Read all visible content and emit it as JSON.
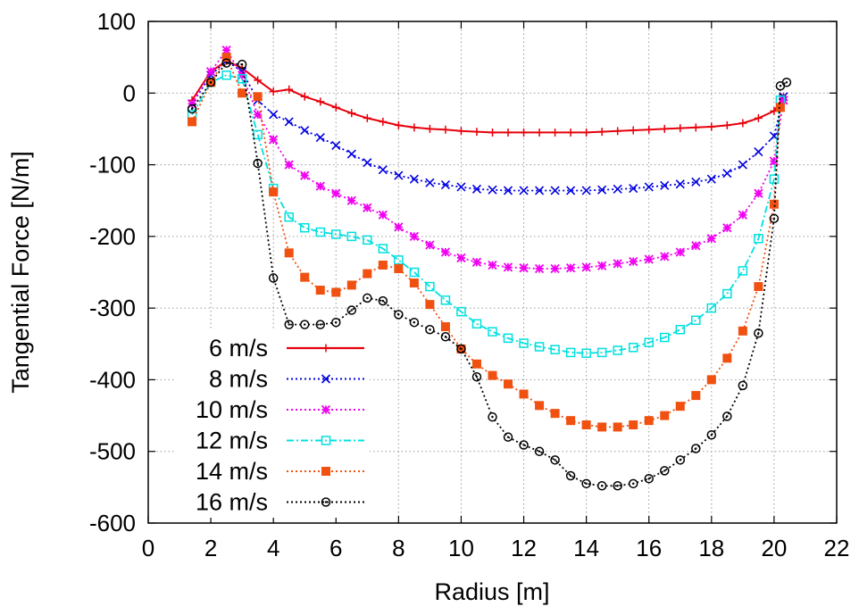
{
  "chart_data": {
    "type": "line",
    "title": "",
    "xlabel": "Radius [m]",
    "ylabel": "Tangential Force [N/m]",
    "xlim": [
      0,
      22
    ],
    "ylim": [
      -600,
      100
    ],
    "xticks": [
      0,
      2,
      4,
      6,
      8,
      10,
      12,
      14,
      16,
      18,
      20,
      22
    ],
    "yticks": [
      100,
      0,
      -100,
      -200,
      -300,
      -400,
      -500,
      -600
    ],
    "grid": true,
    "legend_position": "bottom-left",
    "series": [
      {
        "name": "6 m/s",
        "color": "#e8000b",
        "marker": "plus",
        "dash": "solid",
        "x": [
          1.4,
          2.0,
          2.5,
          3.0,
          3.5,
          4.0,
          4.5,
          5.0,
          5.5,
          6.0,
          6.5,
          7.0,
          7.5,
          8.0,
          8.5,
          9.0,
          9.5,
          10.0,
          10.5,
          11.0,
          11.5,
          12.0,
          12.5,
          13.0,
          13.5,
          14.0,
          14.5,
          15.0,
          15.5,
          16.0,
          16.5,
          17.0,
          17.5,
          18.0,
          18.5,
          19.0,
          19.5,
          20.0,
          20.3
        ],
        "y": [
          -10,
          30,
          45,
          35,
          18,
          2,
          5,
          -5,
          -12,
          -20,
          -28,
          -35,
          -40,
          -45,
          -48,
          -50,
          -51,
          -53,
          -54,
          -55,
          -55,
          -55,
          -55,
          -55,
          -55,
          -55,
          -54,
          -53,
          -52,
          -51,
          -50,
          -49,
          -48,
          -47,
          -45,
          -42,
          -35,
          -25,
          -5
        ]
      },
      {
        "name": "8 m/s",
        "color": "#0000e0",
        "marker": "cross",
        "dash": "dotted",
        "x": [
          1.4,
          2.0,
          2.5,
          3.0,
          3.5,
          4.0,
          4.5,
          5.0,
          5.5,
          6.0,
          6.5,
          7.0,
          7.5,
          8.0,
          8.5,
          9.0,
          9.5,
          10.0,
          10.5,
          11.0,
          11.5,
          12.0,
          12.5,
          13.0,
          13.5,
          14.0,
          14.5,
          15.0,
          15.5,
          16.0,
          16.5,
          17.0,
          17.5,
          18.0,
          18.5,
          19.0,
          19.5,
          20.0,
          20.3
        ],
        "y": [
          -15,
          25,
          45,
          30,
          -10,
          -30,
          -40,
          -52,
          -62,
          -73,
          -85,
          -97,
          -107,
          -115,
          -120,
          -125,
          -128,
          -131,
          -134,
          -135,
          -136,
          -136,
          -136,
          -136,
          -136,
          -136,
          -135,
          -134,
          -133,
          -131,
          -129,
          -127,
          -124,
          -120,
          -112,
          -100,
          -82,
          -60,
          -5
        ]
      },
      {
        "name": "10 m/s",
        "color": "#f000f0",
        "marker": "star",
        "dash": "dotted",
        "x": [
          1.4,
          2.0,
          2.5,
          3.0,
          3.5,
          4.0,
          4.5,
          5.0,
          5.5,
          6.0,
          6.5,
          7.0,
          7.5,
          8.0,
          8.5,
          9.0,
          9.5,
          10.0,
          10.5,
          11.0,
          11.5,
          12.0,
          12.5,
          13.0,
          13.5,
          14.0,
          14.5,
          15.0,
          15.5,
          16.0,
          16.5,
          17.0,
          17.5,
          18.0,
          18.5,
          19.0,
          19.5,
          20.0,
          20.3
        ],
        "y": [
          -15,
          30,
          60,
          25,
          -30,
          -65,
          -100,
          -115,
          -130,
          -140,
          -150,
          -160,
          -170,
          -187,
          -200,
          -212,
          -222,
          -230,
          -236,
          -240,
          -243,
          -244,
          -245,
          -245,
          -244,
          -243,
          -241,
          -238,
          -235,
          -232,
          -228,
          -222,
          -213,
          -203,
          -188,
          -170,
          -140,
          -95,
          -10
        ]
      },
      {
        "name": "12 m/s",
        "color": "#00e0e0",
        "marker": "square",
        "dash": "dashdot",
        "x": [
          1.4,
          2.0,
          2.5,
          3.0,
          3.5,
          4.0,
          4.5,
          5.0,
          5.5,
          6.0,
          6.5,
          7.0,
          7.5,
          8.0,
          8.5,
          9.0,
          9.5,
          10.0,
          10.5,
          11.0,
          11.5,
          12.0,
          12.5,
          13.0,
          13.5,
          14.0,
          14.5,
          15.0,
          15.5,
          16.0,
          16.5,
          17.0,
          17.5,
          18.0,
          18.5,
          19.0,
          19.5,
          20.0,
          20.2
        ],
        "y": [
          -30,
          15,
          25,
          20,
          -58,
          -133,
          -173,
          -188,
          -194,
          -197,
          -200,
          -205,
          -217,
          -233,
          -250,
          -270,
          -289,
          -305,
          -322,
          -333,
          -342,
          -349,
          -354,
          -358,
          -362,
          -363,
          -362,
          -359,
          -355,
          -348,
          -341,
          -330,
          -317,
          -300,
          -280,
          -248,
          -203,
          -120,
          -10
        ]
      },
      {
        "name": "14 m/s",
        "color": "#f05010",
        "marker": "filled-square",
        "dash": "dotted",
        "x": [
          1.4,
          2.0,
          2.5,
          3.0,
          3.5,
          4.0,
          4.5,
          5.0,
          5.5,
          6.0,
          6.5,
          7.0,
          7.5,
          8.0,
          8.5,
          9.0,
          9.5,
          10.0,
          10.5,
          11.0,
          11.5,
          12.0,
          12.5,
          13.0,
          13.5,
          14.0,
          14.5,
          15.0,
          15.5,
          16.0,
          16.5,
          17.0,
          17.5,
          18.0,
          18.5,
          19.0,
          19.5,
          20.0,
          20.2
        ],
        "y": [
          -40,
          15,
          50,
          0,
          -5,
          -138,
          -223,
          -257,
          -275,
          -278,
          -268,
          -252,
          -240,
          -245,
          -265,
          -295,
          -326,
          -357,
          -378,
          -394,
          -406,
          -420,
          -436,
          -447,
          -457,
          -463,
          -466,
          -466,
          -463,
          -457,
          -450,
          -437,
          -422,
          -400,
          -370,
          -332,
          -270,
          -155,
          -20
        ]
      },
      {
        "name": "16 m/s",
        "color": "#000000",
        "marker": "circle-dot",
        "dash": "dotted",
        "x": [
          1.4,
          2.0,
          2.5,
          3.0,
          3.5,
          4.0,
          4.5,
          5.0,
          5.5,
          6.0,
          6.5,
          7.0,
          7.5,
          8.0,
          8.5,
          9.0,
          9.5,
          10.0,
          10.5,
          11.0,
          11.5,
          12.0,
          12.5,
          13.0,
          13.5,
          14.0,
          14.5,
          15.0,
          15.5,
          16.0,
          16.5,
          17.0,
          17.5,
          18.0,
          18.5,
          19.0,
          19.5,
          20.0,
          20.2,
          20.4
        ],
        "y": [
          -22,
          15,
          42,
          40,
          -98,
          -258,
          -323,
          -323,
          -323,
          -320,
          -303,
          -286,
          -290,
          -309,
          -320,
          -330,
          -340,
          -357,
          -396,
          -452,
          -480,
          -491,
          -500,
          -512,
          -534,
          -545,
          -548,
          -548,
          -545,
          -538,
          -527,
          -512,
          -496,
          -477,
          -451,
          -408,
          -335,
          -175,
          10,
          15
        ]
      }
    ]
  }
}
